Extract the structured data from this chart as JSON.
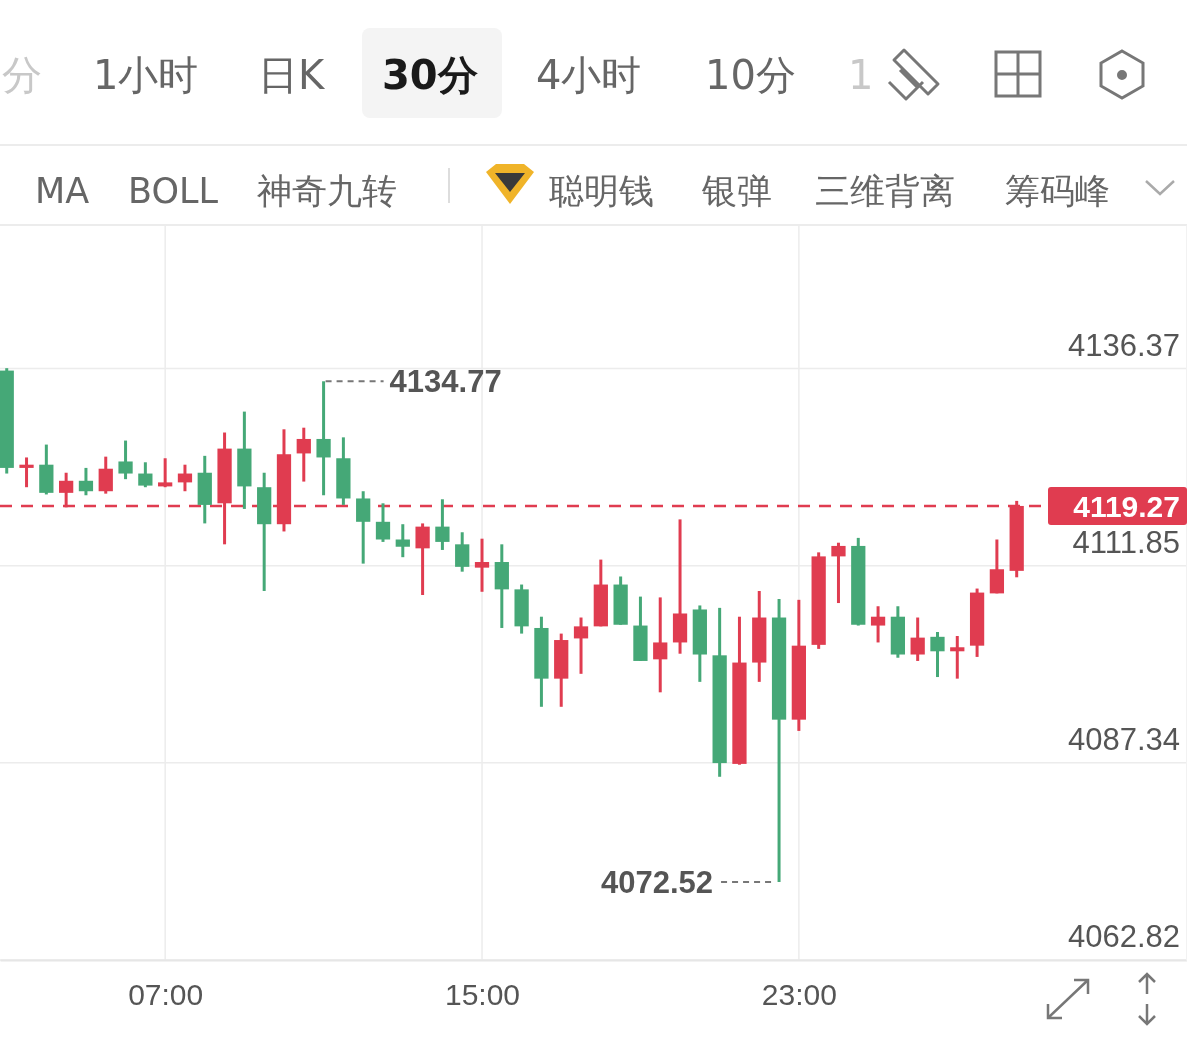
{
  "chart_data": {
    "type": "candlestick",
    "x": [
      3,
      3.5,
      4,
      4.5,
      5,
      5.5,
      6,
      6.5,
      7,
      7.5,
      8,
      8.5,
      9,
      9.5,
      10,
      10.5,
      11,
      11.5,
      12,
      12.5,
      13,
      13.5,
      14,
      14.5,
      15,
      15.5,
      16,
      16.5,
      17,
      17.5,
      18,
      18.5,
      19,
      19.5,
      20,
      20.5,
      21,
      21.5,
      22,
      22.5,
      23,
      23.5,
      24,
      24.5,
      25,
      25.5,
      26,
      26.5,
      27,
      27.5,
      28,
      28.5
    ],
    "ohlc": [
      [
        4136.1,
        4136.4,
        4123.3,
        4124.0
      ],
      [
        4124.0,
        4125.3,
        4121.6,
        4124.4
      ],
      [
        4124.4,
        4126.9,
        4120.7,
        4120.9
      ],
      [
        4120.9,
        4123.4,
        4119.1,
        4122.4
      ],
      [
        4122.4,
        4124.0,
        4120.6,
        4121.1
      ],
      [
        4121.1,
        4125.4,
        4120.8,
        4123.9
      ],
      [
        4124.8,
        4127.4,
        4122.6,
        4123.3
      ],
      [
        4123.3,
        4124.7,
        4121.6,
        4121.8
      ],
      [
        4121.7,
        4125.2,
        4121.6,
        4122.2
      ],
      [
        4122.2,
        4124.4,
        4121.1,
        4123.3
      ],
      [
        4123.4,
        4125.5,
        4117.1,
        4119.4
      ],
      [
        4119.6,
        4128.4,
        4114.5,
        4126.4
      ],
      [
        4126.4,
        4131.0,
        4118.9,
        4121.7
      ],
      [
        4121.6,
        4123.4,
        4108.7,
        4117.0
      ],
      [
        4117.0,
        4128.8,
        4116.1,
        4125.7
      ],
      [
        4125.8,
        4129.0,
        4122.3,
        4127.6
      ],
      [
        4127.6,
        4134.77,
        4120.6,
        4125.3
      ],
      [
        4125.2,
        4127.8,
        4119.4,
        4120.2
      ],
      [
        4120.2,
        4121.1,
        4112.1,
        4117.3
      ],
      [
        4117.3,
        4119.6,
        4114.8,
        4115.1
      ],
      [
        4115.1,
        4117.0,
        4112.9,
        4114.2
      ],
      [
        4114.0,
        4117.1,
        4108.2,
        4116.7
      ],
      [
        4116.7,
        4120.1,
        4113.8,
        4114.8
      ],
      [
        4114.5,
        4116.0,
        4111.1,
        4111.7
      ],
      [
        4111.6,
        4115.2,
        4108.6,
        4112.3
      ],
      [
        4112.3,
        4114.5,
        4104.1,
        4108.9
      ],
      [
        4108.9,
        4109.5,
        4103.4,
        4104.3
      ],
      [
        4104.1,
        4105.5,
        4094.3,
        4097.8
      ],
      [
        4097.8,
        4103.4,
        4094.3,
        4102.6
      ],
      [
        4102.8,
        4105.4,
        4098.4,
        4104.3
      ],
      [
        4104.3,
        4112.6,
        4104.3,
        4109.5
      ],
      [
        4109.5,
        4110.5,
        4104.5,
        4104.5
      ],
      [
        4104.4,
        4108.0,
        4100.0,
        4100.0
      ],
      [
        4100.2,
        4107.9,
        4096.1,
        4102.3
      ],
      [
        4102.3,
        4117.6,
        4100.9,
        4105.9
      ],
      [
        4106.4,
        4106.9,
        4097.4,
        4100.8
      ],
      [
        4100.7,
        4106.6,
        4085.6,
        4087.3
      ],
      [
        4087.2,
        4105.5,
        4087.1,
        4099.8
      ],
      [
        4099.8,
        4108.7,
        4097.4,
        4105.4
      ],
      [
        4105.4,
        4107.7,
        4072.52,
        4092.7
      ],
      [
        4092.7,
        4107.6,
        4091.3,
        4101.9
      ],
      [
        4102.0,
        4113.5,
        4101.5,
        4113.0
      ],
      [
        4113.0,
        4114.7,
        4107.2,
        4114.3
      ],
      [
        4114.3,
        4115.3,
        4104.4,
        4104.5
      ],
      [
        4104.4,
        4106.8,
        4102.3,
        4105.5
      ],
      [
        4105.5,
        4106.8,
        4100.4,
        4100.8
      ],
      [
        4100.8,
        4105.4,
        4100.0,
        4102.9
      ],
      [
        4103.0,
        4103.6,
        4098.0,
        4101.2
      ],
      [
        4101.2,
        4103.1,
        4097.8,
        4101.7
      ],
      [
        4101.9,
        4109.0,
        4100.5,
        4108.5
      ],
      [
        4108.4,
        4115.1,
        4108.4,
        4111.4
      ],
      [
        4111.2,
        4119.9,
        4110.4,
        4119.27
      ]
    ],
    "colors": [
      "#45a877",
      "#e03c50",
      "#45a877",
      "#e03c50",
      "#45a877",
      "#e03c50",
      "#45a877",
      "#45a877",
      "#e03c50",
      "#e03c50",
      "#45a877",
      "#e03c50",
      "#45a877",
      "#45a877",
      "#e03c50",
      "#e03c50",
      "#45a877",
      "#45a877",
      "#45a877",
      "#45a877",
      "#45a877",
      "#e03c50",
      "#45a877",
      "#45a877",
      "#e03c50",
      "#45a877",
      "#45a877",
      "#45a877",
      "#e03c50",
      "#e03c50",
      "#e03c50",
      "#45a877",
      "#45a877",
      "#e03c50",
      "#e03c50",
      "#45a877",
      "#45a877",
      "#e03c50",
      "#e03c50",
      "#45a877",
      "#e03c50",
      "#e03c50",
      "#e03c50",
      "#45a877",
      "#e03c50",
      "#45a877",
      "#e03c50",
      "#45a877",
      "#e03c50",
      "#e03c50",
      "#e03c50",
      "#e03c50"
    ],
    "xlim": [
      2.83,
      32.8
    ],
    "xticks": [
      {
        "value": 7,
        "label": "07:00"
      },
      {
        "value": 15,
        "label": "15:00"
      },
      {
        "value": 23,
        "label": "23:00"
      }
    ],
    "ylim": [
      4062.82,
      4154.2
    ],
    "yticks": [
      4062.82,
      4087.34,
      4111.85,
      4136.37
    ],
    "grid": true,
    "ref_lines": [
      {
        "axis": "y",
        "value": 4119.27,
        "label": "4119.27",
        "color": "#e03c50",
        "line_style": "dashed"
      }
    ],
    "annotations": [
      {
        "text": "4134.77",
        "x": 11,
        "y": 4134.77
      },
      {
        "text": "4072.52",
        "x": 22.5,
        "y": 4072.52
      },
      "分",
      "1小时",
      "日K",
      "30分",
      "4小时",
      "10分",
      "1",
      "MA",
      "BOLL",
      "神奇九转",
      "聪明钱",
      "银弹",
      "三维背离",
      "筹码峰"
    ]
  }
}
